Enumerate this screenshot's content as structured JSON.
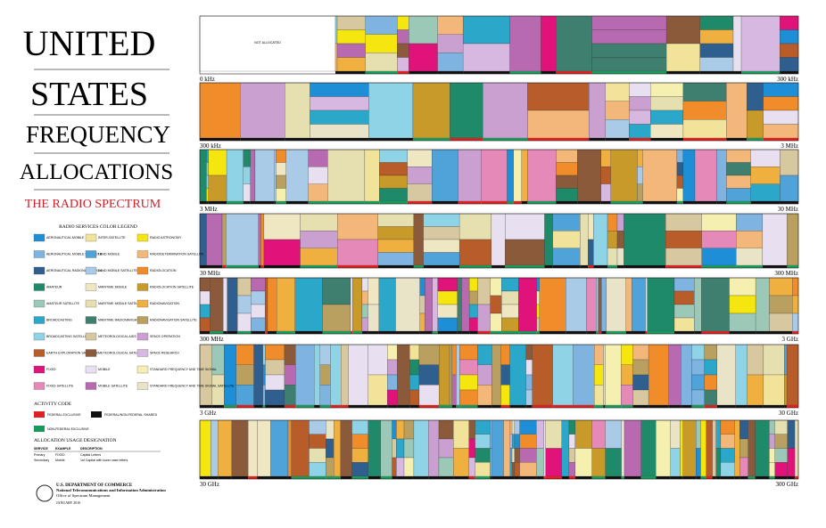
{
  "header": {
    "title_lines": [
      "UNITED",
      "STATES",
      "FREQUENCY",
      "ALLOCATIONS"
    ],
    "subtitle": "THE RADIO SPECTRUM"
  },
  "legend": {
    "title": "RADIO SERVICES COLOR LEGEND",
    "items": [
      {
        "label": "AERONAUTICAL MOBILE",
        "color": "#1e8fd6"
      },
      {
        "label": "AERONAUTICAL MOBILE SATELLITE",
        "color": "#7fb3e0"
      },
      {
        "label": "AERONAUTICAL RADIONAVIGATION",
        "color": "#2f5f8f"
      },
      {
        "label": "AMATEUR",
        "color": "#1f8a6a"
      },
      {
        "label": "AMATEUR SATELLITE",
        "color": "#9cc8b8"
      },
      {
        "label": "BROADCASTING",
        "color": "#2aa7c9"
      },
      {
        "label": "BROADCASTING SATELLITE",
        "color": "#8fd3e6"
      },
      {
        "label": "EARTH EXPLORATION SATELLITE",
        "color": "#b85c2a"
      },
      {
        "label": "FIXED",
        "color": "#e0137a"
      },
      {
        "label": "FIXED SATELLITE",
        "color": "#e58ab8"
      },
      {
        "label": "INTER-SATELLITE",
        "color": "#f2e39a"
      },
      {
        "label": "LAND MOBILE",
        "color": "#4fa3d9"
      },
      {
        "label": "LAND MOBILE SATELLITE",
        "color": "#a9cbe8"
      },
      {
        "label": "MARITIME MOBILE",
        "color": "#efe7c2"
      },
      {
        "label": "MARITIME MOBILE SATELLITE",
        "color": "#e6dfb0"
      },
      {
        "label": "MARITIME RADIONAVIGATION",
        "color": "#3f7f6f"
      },
      {
        "label": "METEOROLOGICAL AIDS",
        "color": "#d8c8a0"
      },
      {
        "label": "METEOROLOGICAL SATELLITE",
        "color": "#8a5a3a"
      },
      {
        "label": "MOBILE",
        "color": "#e8e0f0"
      },
      {
        "label": "MOBILE SATELLITE",
        "color": "#b86ab0"
      },
      {
        "label": "RADIO ASTRONOMY",
        "color": "#f5e60f"
      },
      {
        "label": "RADIODETERMINATION SATELLITE",
        "color": "#f3b77a"
      },
      {
        "label": "RADIOLOCATION",
        "color": "#f08c2a"
      },
      {
        "label": "RADIOLOCATION SATELLITE",
        "color": "#c79a2a"
      },
      {
        "label": "RADIONAVIGATION",
        "color": "#efb040"
      },
      {
        "label": "RADIONAVIGATION SATELLITE",
        "color": "#b9a060"
      },
      {
        "label": "SPACE OPERATION",
        "color": "#c9a0d0"
      },
      {
        "label": "SPACE RESEARCH",
        "color": "#d7b8e0"
      },
      {
        "label": "STANDARD FREQUENCY AND TIME SIGNAL",
        "color": "#f6f0b0"
      },
      {
        "label": "STANDARD FREQUENCY AND TIME SIGNAL SATELLITE",
        "color": "#e9e3c8"
      }
    ]
  },
  "activity": {
    "title": "ACTIVITY CODE",
    "items": [
      {
        "label": "FEDERAL EXCLUSIVE",
        "color": "#e02020"
      },
      {
        "label": "FEDERAL/NON-FEDERAL SHARED",
        "color": "#111111"
      },
      {
        "label": "NON-FEDERAL EXCLUSIVE",
        "color": "#1a9a5a"
      }
    ]
  },
  "usage": {
    "title": "ALLOCATION USAGE DESIGNATION",
    "header": [
      "SERVICE",
      "EXAMPLE",
      "DESCRIPTION"
    ],
    "rows": [
      [
        "Primary",
        "FIXED",
        "Capital Letters"
      ],
      [
        "Secondary",
        "Mobile",
        "1st Capital with lower case letters"
      ]
    ]
  },
  "footer": {
    "dept": "U.S. DEPARTMENT OF COMMERCE",
    "agency": "National Telecommunications and Information Administration",
    "office": "Office of Spectrum Management",
    "date": "JANUARY 2016"
  },
  "bands": [
    {
      "start": "0 kHz",
      "end": "300 kHz",
      "note": "NOT ALLOCATED"
    },
    {
      "start": "300 kHz",
      "end": "3 MHz"
    },
    {
      "start": "3 MHz",
      "end": "30 MHz"
    },
    {
      "start": "30 MHz",
      "end": "300 MHz"
    },
    {
      "start": "300 MHz",
      "end": "3 GHz"
    },
    {
      "start": "3 GHz",
      "end": "30 GHz"
    },
    {
      "start": "30 GHz",
      "end": "300 GHz"
    }
  ]
}
